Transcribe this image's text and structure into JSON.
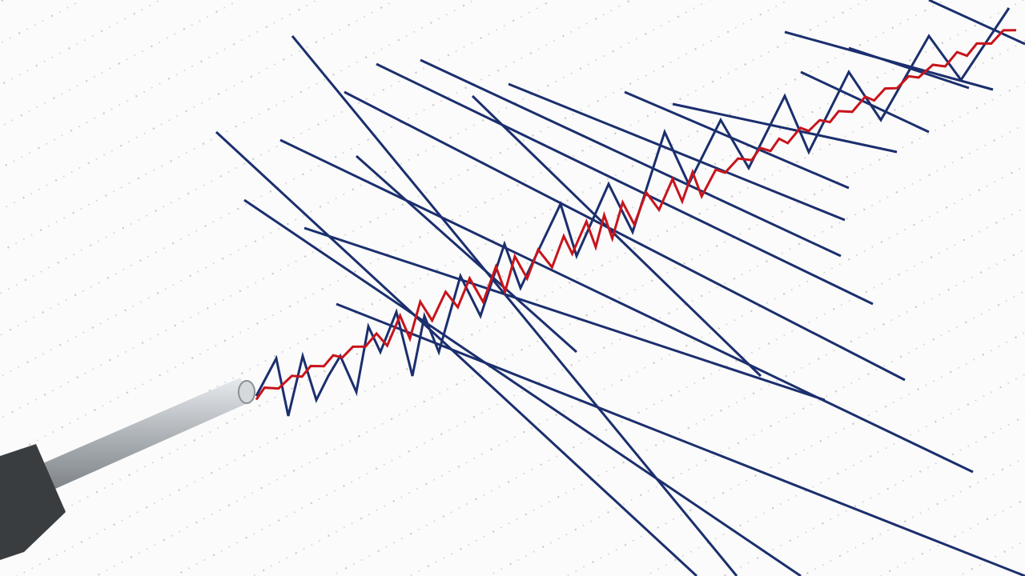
{
  "scene": {
    "subject": "seismograph-recording",
    "colors": {
      "paper": "#fbfbfb",
      "grid_dots": "#c9c9c9",
      "blue_trace": "#1b2f6e",
      "red_trace": "#c8141b",
      "pen_body": "#3a3d40",
      "pen_rod": "#b9bec2"
    }
  }
}
